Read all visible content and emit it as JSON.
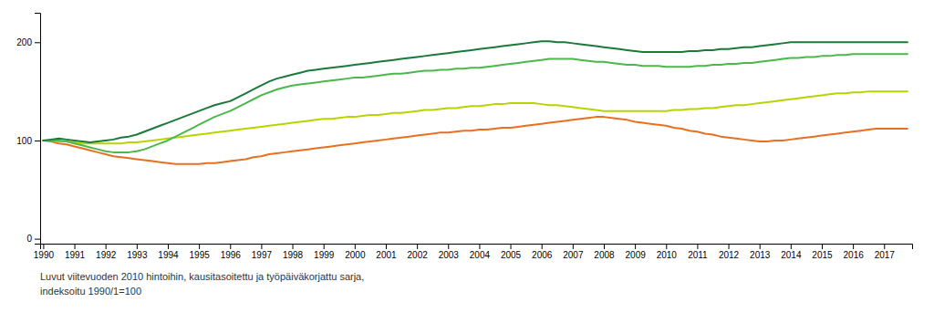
{
  "chart_data": {
    "type": "line",
    "annotations": [
      "Luvut viitevuoden 2010 hintoihin, kausitasoitettu ja työpäiväkorjattu sarja,",
      "indeksoitu 1990/1=100"
    ],
    "x": [
      1990,
      1990.25,
      1990.5,
      1990.75,
      1991,
      1991.25,
      1991.5,
      1991.75,
      1992,
      1992.25,
      1992.5,
      1992.75,
      1993,
      1993.25,
      1993.5,
      1993.75,
      1994,
      1994.25,
      1994.5,
      1994.75,
      1995,
      1995.25,
      1995.5,
      1995.75,
      1996,
      1996.25,
      1996.5,
      1996.75,
      1997,
      1997.25,
      1997.5,
      1997.75,
      1998,
      1998.25,
      1998.5,
      1998.75,
      1999,
      1999.25,
      1999.5,
      1999.75,
      2000,
      2000.25,
      2000.5,
      2000.75,
      2001,
      2001.25,
      2001.5,
      2001.75,
      2002,
      2002.25,
      2002.5,
      2002.75,
      2003,
      2003.25,
      2003.5,
      2003.75,
      2004,
      2004.25,
      2004.5,
      2004.75,
      2005,
      2005.25,
      2005.5,
      2005.75,
      2006,
      2006.25,
      2006.5,
      2006.75,
      2007,
      2007.25,
      2007.5,
      2007.75,
      2008,
      2008.25,
      2008.5,
      2008.75,
      2009,
      2009.25,
      2009.5,
      2009.75,
      2010,
      2010.25,
      2010.5,
      2010.75,
      2011,
      2011.25,
      2011.5,
      2011.75,
      2012,
      2012.25,
      2012.5,
      2012.75,
      2013,
      2013.25,
      2013.5,
      2013.75,
      2014,
      2014.25,
      2014.5,
      2014.75,
      2015,
      2015.25,
      2015.5,
      2015.75,
      2016,
      2016.25,
      2016.5,
      2016.75,
      2017,
      2017.25,
      2017.5,
      2017.75
    ],
    "series": [
      {
        "color": "#e87020",
        "values": [
          100,
          99,
          97,
          96,
          94,
          92,
          90,
          88,
          86,
          84,
          83,
          82,
          81,
          80,
          79,
          78,
          77,
          76,
          76,
          76,
          76,
          77,
          77,
          78,
          79,
          80,
          81,
          83,
          84,
          86,
          87,
          88,
          89,
          90,
          91,
          92,
          93,
          94,
          95,
          96,
          97,
          98,
          99,
          100,
          101,
          102,
          103,
          104,
          105,
          106,
          107,
          108,
          108,
          109,
          110,
          110,
          111,
          111,
          112,
          113,
          113,
          114,
          115,
          116,
          117,
          118,
          119,
          120,
          121,
          122,
          123,
          124,
          124,
          123,
          122,
          121,
          119,
          118,
          117,
          116,
          115,
          113,
          112,
          110,
          109,
          107,
          106,
          104,
          103,
          102,
          101,
          100,
          99,
          99,
          100,
          100,
          101,
          102,
          103,
          104,
          105,
          106,
          107,
          108,
          109,
          110,
          111,
          112,
          112,
          112,
          112,
          112
        ]
      },
      {
        "color": "#b8d400",
        "values": [
          100,
          100,
          99,
          99,
          98,
          97,
          97,
          97,
          97,
          97,
          97,
          98,
          98,
          99,
          100,
          101,
          102,
          103,
          104,
          105,
          106,
          107,
          108,
          109,
          110,
          111,
          112,
          113,
          114,
          115,
          116,
          117,
          118,
          119,
          120,
          121,
          122,
          122,
          123,
          124,
          124,
          125,
          126,
          126,
          127,
          128,
          128,
          129,
          130,
          131,
          131,
          132,
          133,
          133,
          134,
          135,
          135,
          136,
          137,
          137,
          138,
          138,
          138,
          138,
          137,
          136,
          136,
          135,
          134,
          133,
          132,
          131,
          130,
          130,
          130,
          130,
          130,
          130,
          130,
          130,
          130,
          131,
          131,
          132,
          132,
          133,
          133,
          134,
          135,
          136,
          136,
          137,
          138,
          139,
          140,
          141,
          142,
          143,
          144,
          145,
          146,
          147,
          148,
          148,
          149,
          149,
          150,
          150,
          150,
          150,
          150,
          150
        ]
      },
      {
        "color": "#4cb84c",
        "values": [
          100,
          100,
          100,
          99,
          97,
          95,
          93,
          91,
          89,
          88,
          88,
          88,
          89,
          91,
          94,
          97,
          100,
          104,
          108,
          112,
          116,
          120,
          124,
          127,
          130,
          134,
          138,
          142,
          146,
          149,
          152,
          154,
          156,
          157,
          158,
          159,
          160,
          161,
          162,
          163,
          164,
          164,
          165,
          166,
          167,
          168,
          168,
          169,
          170,
          171,
          171,
          172,
          172,
          173,
          173,
          174,
          174,
          175,
          176,
          177,
          178,
          179,
          180,
          181,
          182,
          183,
          183,
          183,
          183,
          182,
          181,
          180,
          180,
          179,
          178,
          177,
          177,
          176,
          176,
          176,
          175,
          175,
          175,
          175,
          176,
          176,
          177,
          177,
          178,
          178,
          179,
          179,
          180,
          181,
          182,
          183,
          184,
          184,
          185,
          185,
          186,
          186,
          187,
          187,
          188,
          188,
          188,
          188,
          188,
          188,
          188,
          188
        ]
      },
      {
        "color": "#1a7a3a",
        "values": [
          100,
          101,
          102,
          101,
          100,
          99,
          98,
          99,
          100,
          101,
          103,
          104,
          106,
          109,
          112,
          115,
          118,
          121,
          124,
          127,
          130,
          133,
          136,
          138,
          140,
          144,
          148,
          152,
          156,
          160,
          163,
          165,
          167,
          169,
          171,
          172,
          173,
          174,
          175,
          176,
          177,
          178,
          179,
          180,
          181,
          182,
          183,
          184,
          185,
          186,
          187,
          188,
          189,
          190,
          191,
          192,
          193,
          194,
          195,
          196,
          197,
          198,
          199,
          200,
          201,
          201,
          200,
          200,
          199,
          198,
          197,
          196,
          195,
          194,
          193,
          192,
          191,
          190,
          190,
          190,
          190,
          190,
          190,
          191,
          191,
          192,
          192,
          193,
          193,
          194,
          195,
          195,
          196,
          197,
          198,
          199,
          200,
          200,
          200,
          200,
          200,
          200,
          200,
          200,
          200,
          200,
          200,
          200,
          200,
          200,
          200,
          200
        ]
      }
    ],
    "xlim": [
      1989.9,
      2017.9
    ],
    "xticks": [
      1990,
      1991,
      1992,
      1993,
      1994,
      1995,
      1996,
      1997,
      1998,
      1999,
      2000,
      2001,
      2002,
      2003,
      2004,
      2005,
      2006,
      2007,
      2008,
      2009,
      2010,
      2011,
      2012,
      2013,
      2014,
      2015,
      2016,
      2017
    ],
    "ylim": [
      -5,
      230
    ],
    "yticks": [
      0,
      100,
      200
    ],
    "grid": false
  }
}
